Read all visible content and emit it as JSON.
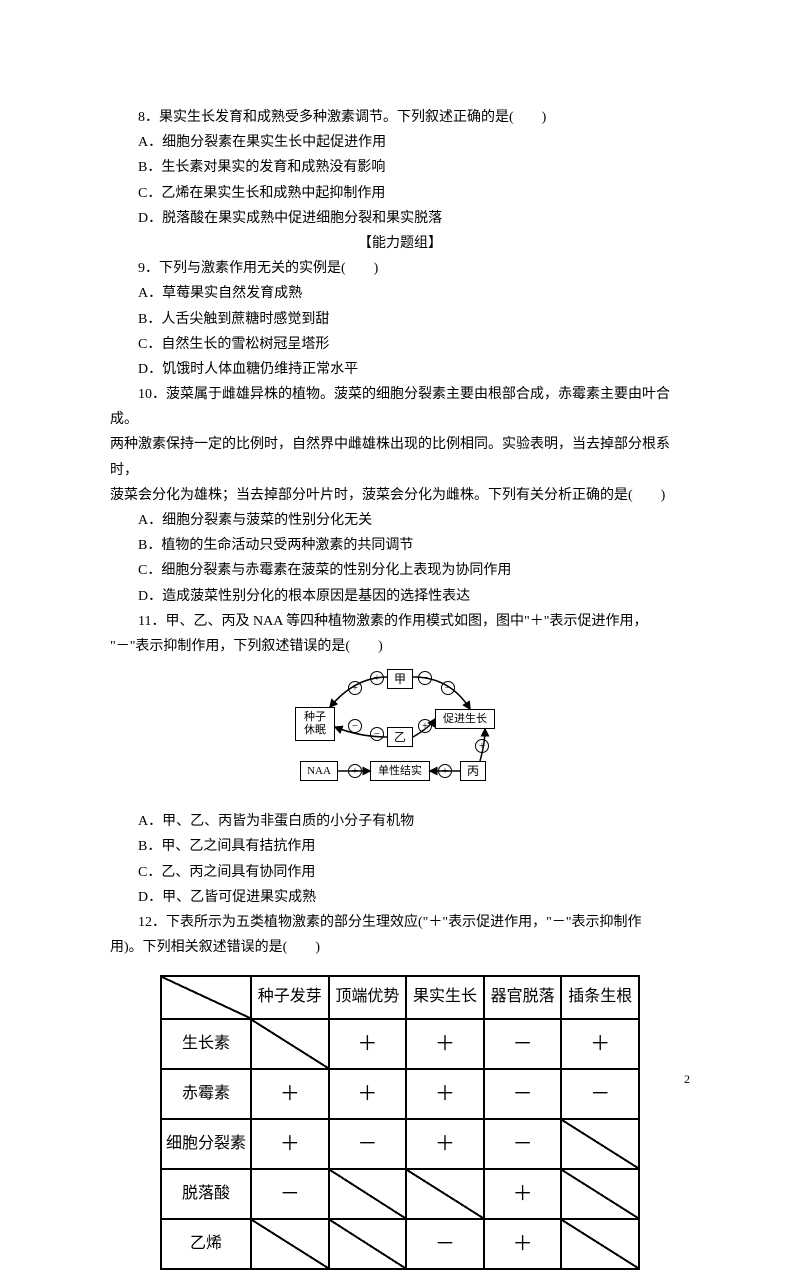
{
  "q8": {
    "stem": "8．果实生长发育和成熟受多种激素调节。下列叙述正确的是(　　)",
    "A": "A．细胞分裂素在果实生长中起促进作用",
    "B": "B．生长素对果实的发育和成熟没有影响",
    "C": "C．乙烯在果实生长和成熟中起抑制作用",
    "D": "D．脱落酸在果实成熟中促进细胞分裂和果实脱落"
  },
  "section": "【能力题组】",
  "q9": {
    "stem": "9．下列与激素作用无关的实例是(　　)",
    "A": "A．草莓果实自然发育成熟",
    "B": "B．人舌尖触到蔗糖时感觉到甜",
    "C": "C．自然生长的雪松树冠呈塔形",
    "D": "D．饥饿时人体血糖仍维持正常水平"
  },
  "q10": {
    "stem1": "10．菠菜属于雌雄异株的植物。菠菜的细胞分裂素主要由根部合成，赤霉素主要由叶合成。",
    "stem2": "两种激素保持一定的比例时，自然界中雌雄株出现的比例相同。实验表明，当去掉部分根系时，",
    "stem3": "菠菜会分化为雄株；当去掉部分叶片时，菠菜会分化为雌株。下列有关分析正确的是(　　)",
    "A": "A．细胞分裂素与菠菜的性别分化无关",
    "B": "B．植物的生命活动只受两种激素的共同调节",
    "C": "C．细胞分裂素与赤霉素在菠菜的性别分化上表现为协同作用",
    "D": "D．造成菠菜性别分化的根本原因是基因的选择性表达"
  },
  "q11": {
    "stem1": "11．甲、乙、丙及 NAA 等四种植物激素的作用模式如图，图中\"＋\"表示促进作用，",
    "stem2": "\"－\"表示抑制作用，下列叙述错误的是(　　)",
    "diagram": {
      "nodes": {
        "jia": "甲",
        "yi": "乙",
        "bing": "丙",
        "naa": "NAA",
        "seed": "种子\n休眠",
        "grow": "促进生长",
        "fruit": "单性结实"
      }
    },
    "A": "A．甲、乙、丙皆为非蛋白质的小分子有机物",
    "B": "B．甲、乙之间具有拮抗作用",
    "C": "C．乙、丙之间具有协同作用",
    "D": "D．甲、乙皆可促进果实成熟"
  },
  "q12": {
    "stem1": "12．下表所示为五类植物激素的部分生理效应(\"＋\"表示促进作用，\"－\"表示抑制作",
    "stem2": "用)。下列相关叙述错误的是(　　)",
    "table": {
      "columns": [
        "",
        "种子发芽",
        "顶端优势",
        "果实生长",
        "器官脱落",
        "插条生根"
      ],
      "rows": [
        {
          "label": "生长素",
          "cells": [
            "/",
            "＋",
            "＋",
            "－",
            "＋"
          ]
        },
        {
          "label": "赤霉素",
          "cells": [
            "＋",
            "＋",
            "＋",
            "－",
            "－"
          ]
        },
        {
          "label": "细胞分裂素",
          "cells": [
            "＋",
            "－",
            "＋",
            "－",
            "/"
          ]
        },
        {
          "label": "脱落酸",
          "cells": [
            "－",
            "/",
            "/",
            "＋",
            "/"
          ]
        },
        {
          "label": "乙烯",
          "cells": [
            "/",
            "/",
            "－",
            "＋",
            "/"
          ]
        }
      ]
    }
  },
  "pageNum": "2"
}
